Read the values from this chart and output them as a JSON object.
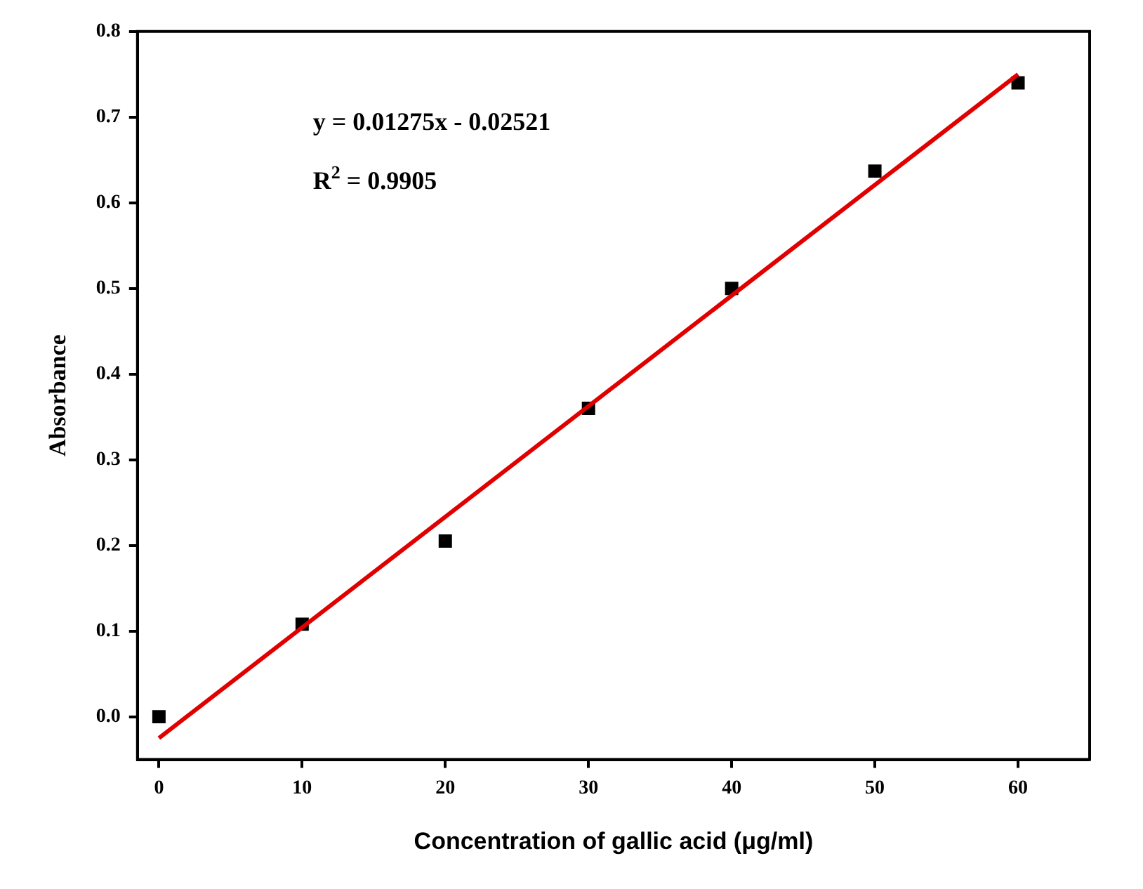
{
  "chart_data": {
    "type": "scatter",
    "xlabel": "Concentration of gallic acid (μg/ml)",
    "ylabel": "Absorbance",
    "x": [
      0,
      10,
      20,
      30,
      40,
      50,
      60
    ],
    "series": [
      {
        "type": "scatter",
        "color": "#000000",
        "marker": "square",
        "values": [
          0,
          0.108,
          0.205,
          0.36,
          0.5,
          0.637,
          0.74
        ]
      },
      {
        "type": "line",
        "color": "#e00000",
        "marker": "none",
        "x": [
          0,
          60
        ],
        "values": [
          -0.025,
          0.75
        ]
      }
    ],
    "xlim": [
      -1.5,
      65
    ],
    "xticks": [
      0,
      10,
      20,
      30,
      40,
      50,
      60
    ],
    "ylim": [
      -0.05,
      0.8
    ],
    "yticks": [
      {
        "value": 0,
        "label": "0.0"
      },
      {
        "value": 0.1,
        "label": "0.1"
      },
      {
        "value": 0.2,
        "label": "0.2"
      },
      {
        "value": 0.3,
        "label": "0.3"
      },
      {
        "value": 0.4,
        "label": "0.4"
      },
      {
        "value": 0.5,
        "label": "0.5"
      },
      {
        "value": 0.6,
        "label": "0.6"
      },
      {
        "value": 0.7,
        "label": "0.7"
      },
      {
        "value": 0.8,
        "label": "0.8"
      }
    ],
    "annotations": [
      "y = 0.01275x - 0.02521",
      "R$^{2}$ = 0.9905"
    ],
    "grid": false,
    "legend": false
  }
}
